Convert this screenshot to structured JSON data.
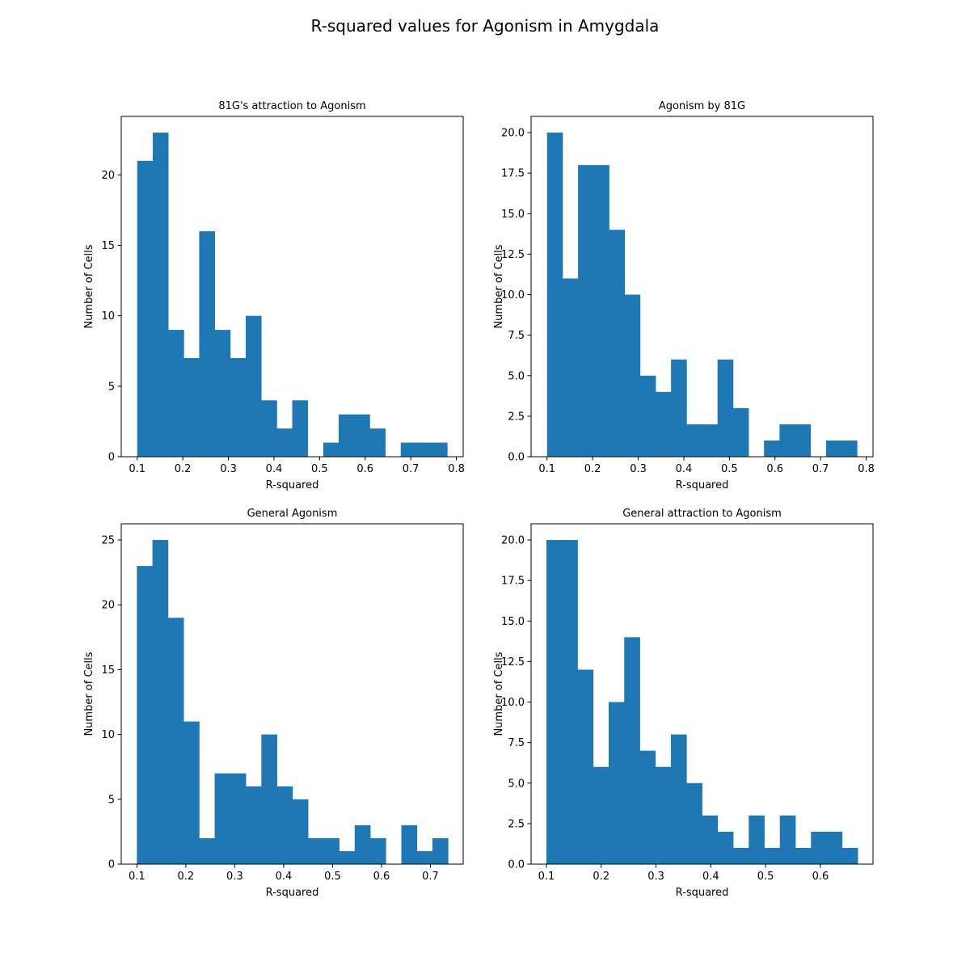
{
  "figure": {
    "title": "R-squared values for Agonism in Amygdala"
  },
  "colors": {
    "bar": "#1f77b4",
    "axis": "#000000",
    "background": "#ffffff"
  },
  "chart_data": [
    {
      "type": "bar",
      "title": "81G's attraction to Agonism",
      "xlabel": "R-squared",
      "ylabel": "Number of Cells",
      "xlim": [
        0.065,
        0.815
      ],
      "ylim": [
        0,
        24.15
      ],
      "xticks": [
        0.1,
        0.2,
        0.3,
        0.4,
        0.5,
        0.6,
        0.7,
        0.8
      ],
      "xtick_labels": [
        "0.1",
        "0.2",
        "0.3",
        "0.4",
        "0.5",
        "0.6",
        "0.7",
        "0.8"
      ],
      "yticks": [
        0,
        5,
        10,
        15,
        20
      ],
      "ytick_labels": [
        "0",
        "5",
        "10",
        "15",
        "20"
      ],
      "bin_edges": [
        0.1,
        0.134,
        0.168,
        0.202,
        0.236,
        0.27,
        0.304,
        0.338,
        0.372,
        0.406,
        0.44,
        0.474,
        0.508,
        0.542,
        0.576,
        0.61,
        0.644,
        0.678,
        0.712,
        0.746,
        0.78
      ],
      "values": [
        21,
        23,
        9,
        7,
        16,
        9,
        7,
        10,
        4,
        2,
        4,
        0,
        1,
        3,
        3,
        2,
        0,
        1,
        1,
        1
      ]
    },
    {
      "type": "bar",
      "title": "Agonism by 81G",
      "xlabel": "R-squared",
      "ylabel": "Number of Cells",
      "xlim": [
        0.065,
        0.815
      ],
      "ylim": [
        0,
        21.0
      ],
      "xticks": [
        0.1,
        0.2,
        0.3,
        0.4,
        0.5,
        0.6,
        0.7,
        0.8
      ],
      "xtick_labels": [
        "0.1",
        "0.2",
        "0.3",
        "0.4",
        "0.5",
        "0.6",
        "0.7",
        "0.8"
      ],
      "yticks": [
        0,
        2.5,
        5,
        7.5,
        10,
        12.5,
        15,
        17.5,
        20
      ],
      "ytick_labels": [
        "0.0",
        "2.5",
        "5.0",
        "7.5",
        "10.0",
        "12.5",
        "15.0",
        "17.5",
        "20.0"
      ],
      "bin_edges": [
        0.1,
        0.134,
        0.168,
        0.202,
        0.236,
        0.27,
        0.304,
        0.338,
        0.372,
        0.406,
        0.44,
        0.474,
        0.508,
        0.542,
        0.576,
        0.61,
        0.644,
        0.678,
        0.712,
        0.746,
        0.78
      ],
      "values": [
        20,
        11,
        18,
        18,
        14,
        10,
        5,
        4,
        6,
        2,
        2,
        6,
        3,
        0,
        1,
        2,
        2,
        0,
        1,
        1
      ]
    },
    {
      "type": "bar",
      "title": "General Agonism",
      "xlabel": "R-squared",
      "ylabel": "Number of Cells",
      "xlim": [
        0.068,
        0.767
      ],
      "ylim": [
        0,
        26.25
      ],
      "xticks": [
        0.1,
        0.2,
        0.3,
        0.4,
        0.5,
        0.6,
        0.7
      ],
      "xtick_labels": [
        "0.1",
        "0.2",
        "0.3",
        "0.4",
        "0.5",
        "0.6",
        "0.7"
      ],
      "yticks": [
        0,
        5,
        10,
        15,
        20,
        25
      ],
      "ytick_labels": [
        "0",
        "5",
        "10",
        "15",
        "20",
        "25"
      ],
      "bin_edges": [
        0.1,
        0.1318,
        0.1636,
        0.1954,
        0.2272,
        0.259,
        0.2908,
        0.3226,
        0.3544,
        0.3862,
        0.418,
        0.4498,
        0.4816,
        0.5134,
        0.5452,
        0.577,
        0.6088,
        0.6406,
        0.6724,
        0.7042,
        0.736
      ],
      "values": [
        23,
        25,
        19,
        11,
        2,
        7,
        7,
        6,
        10,
        6,
        5,
        2,
        2,
        1,
        3,
        2,
        0,
        3,
        1,
        2
      ]
    },
    {
      "type": "bar",
      "title": "General attraction to Agonism",
      "xlabel": "R-squared",
      "ylabel": "Number of Cells",
      "xlim": [
        0.072,
        0.696
      ],
      "ylim": [
        0,
        21.0
      ],
      "xticks": [
        0.1,
        0.2,
        0.3,
        0.4,
        0.5,
        0.6
      ],
      "xtick_labels": [
        "0.1",
        "0.2",
        "0.3",
        "0.4",
        "0.5",
        "0.6"
      ],
      "yticks": [
        0,
        2.5,
        5,
        7.5,
        10,
        12.5,
        15,
        17.5,
        20
      ],
      "ytick_labels": [
        "0.0",
        "2.5",
        "5.0",
        "7.5",
        "10.0",
        "12.5",
        "15.0",
        "17.5",
        "20.0"
      ],
      "bin_edges": [
        0.1,
        0.1284,
        0.1568,
        0.1852,
        0.2136,
        0.242,
        0.2704,
        0.2988,
        0.3272,
        0.3556,
        0.384,
        0.4124,
        0.4408,
        0.4692,
        0.4976,
        0.526,
        0.5544,
        0.5828,
        0.6112,
        0.6396,
        0.668
      ],
      "values": [
        20,
        20,
        12,
        6,
        10,
        14,
        7,
        6,
        8,
        5,
        3,
        2,
        1,
        3,
        1,
        3,
        1,
        2,
        2,
        1
      ]
    }
  ]
}
